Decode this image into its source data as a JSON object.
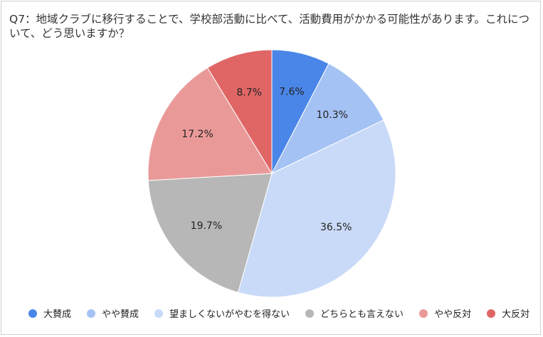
{
  "chart_data": {
    "type": "pie",
    "title": "Q7：地域クラブに移行することで、学校部活動に比べて、活動費用がかかる可能性があります。これについて、どう思いますか？",
    "start_angle_deg": 0,
    "direction": "clockwise",
    "legend_position": "bottom",
    "slices": [
      {
        "label": "大賛成",
        "value": 7.6,
        "value_label": "7.6%",
        "color": "#4a86e8"
      },
      {
        "label": "やや賛成",
        "value": 10.3,
        "value_label": "10.3%",
        "color": "#a4c2f4"
      },
      {
        "label": "望ましくないがやむを得ない",
        "value": 36.5,
        "value_label": "36.5%",
        "color": "#c9daf8"
      },
      {
        "label": "どちらとも言えない",
        "value": 19.7,
        "value_label": "19.7%",
        "color": "#b7b7b7"
      },
      {
        "label": "やや反対",
        "value": 17.2,
        "value_label": "17.2%",
        "color": "#ea9999"
      },
      {
        "label": "大反対",
        "value": 8.7,
        "value_label": "8.7%",
        "color": "#e06666"
      }
    ]
  }
}
